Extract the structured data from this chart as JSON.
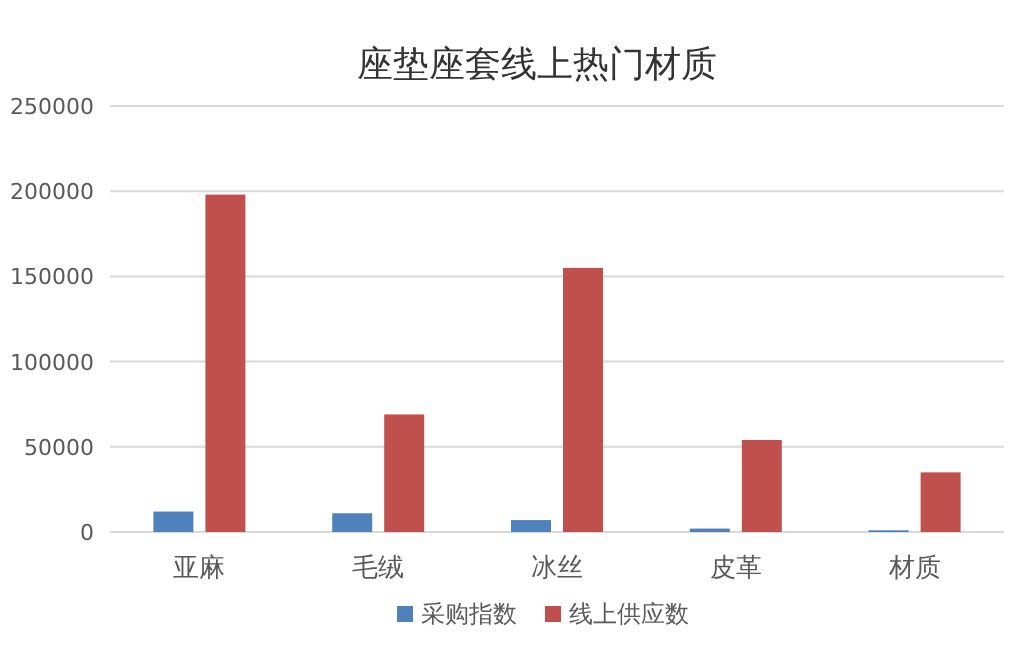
{
  "chart_data": {
    "type": "bar",
    "title": "座垫座套线上热门材质",
    "categories": [
      "亚麻",
      "毛绒",
      "冰丝",
      "皮革",
      "材质"
    ],
    "series": [
      {
        "name": "采购指数",
        "color": "#4f81bd",
        "values": [
          12000,
          11000,
          7000,
          2000,
          1000
        ]
      },
      {
        "name": "线上供应数",
        "color": "#c0504d",
        "values": [
          198000,
          69000,
          155000,
          54000,
          35000
        ]
      }
    ],
    "ylim": [
      0,
      250000
    ],
    "yticks": [
      0,
      50000,
      100000,
      150000,
      200000,
      250000
    ],
    "grid": "y",
    "legend": "bottom"
  }
}
